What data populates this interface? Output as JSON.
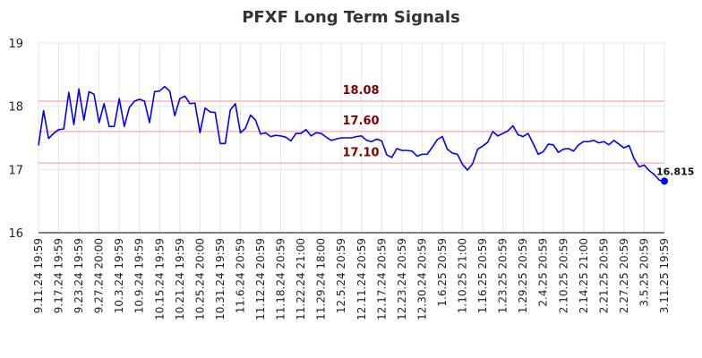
{
  "chart_data": {
    "type": "line",
    "title": "PFXF Long Term Signals",
    "xlabel": "",
    "ylabel": "",
    "ylim": [
      16,
      19
    ],
    "yticks": [
      "16",
      "17",
      "18",
      "19"
    ],
    "grid": true,
    "line_color": "#0000ff",
    "x_tick_labels": [
      "9.11.24 19:59",
      "9.17.24 19:59",
      "9.23.24 19:59",
      "9.27.24 20:00",
      "10.3.24 19:59",
      "10.9.24 19:59",
      "10.15.24 19:59",
      "10.21.24 19:59",
      "10.25.24 20:00",
      "10.31.24 19:59",
      "11.6.24 20:59",
      "11.12.24 20:59",
      "11.18.24 20:59",
      "11.22.24 21:00",
      "11.29.24 18:00",
      "12.5.24 20:59",
      "12.11.24 20:59",
      "12.17.24 20:59",
      "12.23.24 20:59",
      "12.30.24 20:59",
      "1.6.25 20:59",
      "1.10.25 21:00",
      "1.16.25 20:59",
      "1.23.25 20:59",
      "1.29.25 20:59",
      "2.4.25 20:59",
      "2.10.25 20:59",
      "2.14.25 21:00",
      "2.21.25 20:59",
      "2.27.25 20:59",
      "3.5.25 20:59",
      "3.11.25 19:59"
    ],
    "values": [
      17.38,
      17.93,
      17.49,
      17.57,
      17.63,
      17.64,
      18.22,
      17.71,
      18.27,
      17.78,
      18.23,
      18.19,
      17.74,
      18.04,
      17.68,
      17.68,
      18.12,
      17.68,
      17.98,
      18.08,
      18.11,
      18.08,
      17.74,
      18.23,
      18.24,
      18.31,
      18.24,
      17.85,
      18.12,
      18.16,
      18.04,
      18.05,
      17.58,
      17.97,
      17.91,
      17.9,
      17.41,
      17.41,
      17.94,
      18.04,
      17.58,
      17.65,
      17.86,
      17.78,
      17.56,
      17.58,
      17.52,
      17.54,
      17.53,
      17.51,
      17.45,
      17.57,
      17.57,
      17.63,
      17.53,
      17.58,
      17.57,
      17.51,
      17.46,
      17.48,
      17.5,
      17.5,
      17.5,
      17.52,
      17.53,
      17.46,
      17.44,
      17.48,
      17.45,
      17.23,
      17.19,
      17.33,
      17.3,
      17.3,
      17.29,
      17.21,
      17.24,
      17.24,
      17.35,
      17.47,
      17.52,
      17.32,
      17.26,
      17.24,
      17.08,
      16.99,
      17.09,
      17.32,
      17.37,
      17.43,
      17.6,
      17.53,
      17.57,
      17.61,
      17.69,
      17.55,
      17.52,
      17.57,
      17.41,
      17.24,
      17.28,
      17.4,
      17.39,
      17.27,
      17.32,
      17.33,
      17.29,
      17.39,
      17.44,
      17.44,
      17.46,
      17.42,
      17.44,
      17.39,
      17.46,
      17.4,
      17.34,
      17.38,
      17.17,
      17.04,
      17.07,
      16.98,
      16.92,
      16.83,
      16.815
    ],
    "signals": [
      {
        "value": 18.08,
        "label": "18.08",
        "color": "#800000",
        "line_color": "#ffb3b3"
      },
      {
        "value": 17.6,
        "label": "17.60",
        "color": "#800000",
        "line_color": "#ffb3b3"
      },
      {
        "value": 17.1,
        "label": "17.10",
        "color": "#800000",
        "line_color": "#ffb3b3"
      }
    ],
    "last_value_label": "16.815"
  }
}
